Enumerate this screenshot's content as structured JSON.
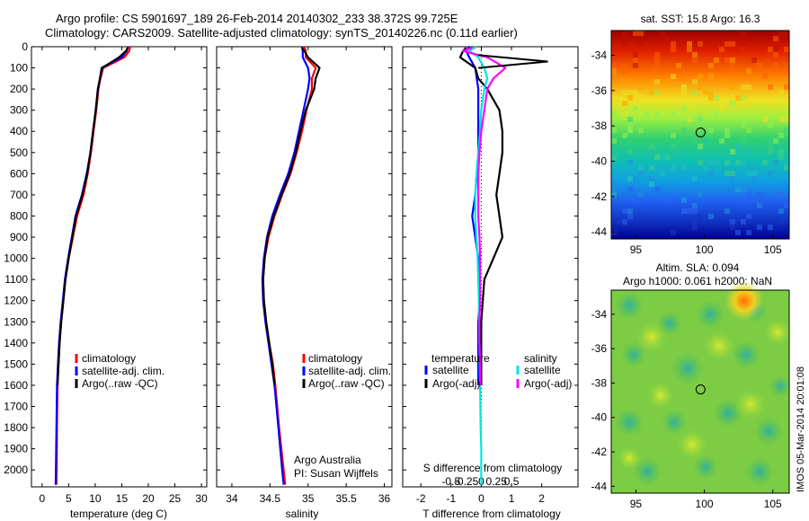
{
  "header": {
    "line1": "Argo profile: CS 5901697_189 26-Feb-2014 20140302_233 38.372S 99.725E",
    "line2": "Climatology: CARS2009. Satellite-adjusted climatology: synTS_20140226.nc (0.11d earlier)"
  },
  "colors": {
    "climatology": "#ff0000",
    "satellite": "#0000ff",
    "argo": "#000000",
    "satellite_salinity": "#00e5e5",
    "argo_adj_salinity": "#ff00ff"
  },
  "chart_data": [
    {
      "id": "temperature",
      "type": "line",
      "xlabel": "temperature (deg C)",
      "ylabel": "",
      "xlim": [
        -2,
        31
      ],
      "ylim": [
        2080,
        0
      ],
      "y_reversed": true,
      "xticks": [
        0,
        5,
        10,
        15,
        20,
        25,
        30
      ],
      "xtick_labels": [
        "0",
        "5",
        "10",
        "15",
        "20",
        "25",
        "30"
      ],
      "yticks": [
        0,
        100,
        200,
        300,
        400,
        500,
        600,
        700,
        800,
        900,
        1000,
        1100,
        1200,
        1300,
        1400,
        1500,
        1600,
        1700,
        1800,
        1900,
        2000
      ],
      "ytick_labels": [
        "0",
        "100",
        "200",
        "300",
        "400",
        "500",
        "600",
        "700",
        "800",
        "900",
        "1000",
        "1100",
        "1200",
        "1300",
        "1400",
        "1500",
        "1600",
        "1700",
        "1800",
        "1900",
        "2000"
      ],
      "legend": [
        "climatology",
        "satellite-adj. clim.",
        "Argo(..raw -QC)"
      ],
      "legend_position": "lower-right",
      "series": [
        {
          "name": "climatology",
          "color": "#ff0000",
          "x": [
            16.6,
            16.4,
            15.5,
            11.5,
            11.0,
            10.6,
            10.2,
            9.7,
            9.2,
            8.6,
            7.8,
            6.6,
            5.8,
            5.0,
            4.4,
            4.0,
            3.6,
            3.3,
            3.1,
            2.9,
            2.8,
            2.75,
            2.7
          ],
          "y": [
            0,
            20,
            50,
            100,
            150,
            200,
            300,
            400,
            500,
            600,
            700,
            800,
            900,
            1000,
            1100,
            1200,
            1300,
            1400,
            1500,
            1600,
            1800,
            2000,
            2070
          ]
        },
        {
          "name": "satellite-adj. clim.",
          "color": "#0000ff",
          "x": [
            16.2,
            15.9,
            15.0,
            11.2,
            10.9,
            10.5,
            10.1,
            9.6,
            9.1,
            8.4,
            7.5,
            6.3,
            5.6,
            4.9,
            4.3,
            3.9,
            3.5,
            3.2,
            3.0,
            2.8,
            2.7,
            2.6,
            2.55
          ],
          "y": [
            0,
            20,
            50,
            100,
            150,
            200,
            300,
            400,
            500,
            600,
            700,
            800,
            900,
            1000,
            1100,
            1200,
            1300,
            1400,
            1500,
            1600,
            1800,
            2000,
            2070
          ]
        },
        {
          "name": "Argo(..raw -QC)",
          "color": "#000000",
          "x": [
            16.1,
            15.8,
            14.5,
            11.3,
            10.9,
            10.5,
            10.1,
            9.6,
            9.1,
            8.5,
            7.6,
            6.4,
            5.7,
            5.0,
            4.4,
            4.0,
            3.6,
            3.3,
            3.1,
            2.9
          ],
          "y": [
            5,
            20,
            50,
            100,
            150,
            200,
            300,
            400,
            500,
            600,
            700,
            800,
            900,
            1000,
            1100,
            1200,
            1300,
            1400,
            1500,
            1600
          ]
        }
      ],
      "annotations": []
    },
    {
      "id": "salinity",
      "type": "line",
      "xlabel": "salinity",
      "ylabel": "",
      "xlim": [
        33.8,
        36.1
      ],
      "ylim": [
        2080,
        0
      ],
      "y_reversed": true,
      "xticks": [
        34,
        34.5,
        35,
        35.5,
        36
      ],
      "xtick_labels": [
        "34",
        "34.5",
        "35",
        "35.5",
        "36"
      ],
      "legend": [
        "climatology",
        "satellite-adj. clim.",
        "Argo(..raw -QC)"
      ],
      "legend_position": "lower-right",
      "series": [
        {
          "name": "climatology",
          "color": "#ff0000",
          "x": [
            34.95,
            34.97,
            34.97,
            35.1,
            35.05,
            35.05,
            34.98,
            34.92,
            34.85,
            34.77,
            34.66,
            34.56,
            34.48,
            34.43,
            34.41,
            34.42,
            34.45,
            34.49,
            34.54,
            34.57,
            34.62,
            34.68,
            34.7
          ],
          "y": [
            0,
            20,
            50,
            100,
            150,
            200,
            300,
            400,
            500,
            600,
            700,
            800,
            900,
            1000,
            1100,
            1200,
            1300,
            1400,
            1500,
            1600,
            1800,
            2000,
            2070
          ]
        },
        {
          "name": "satellite-adj. clim.",
          "color": "#0000ff",
          "x": [
            34.92,
            34.93,
            34.93,
            35.0,
            35.02,
            35.0,
            34.94,
            34.88,
            34.82,
            34.74,
            34.63,
            34.53,
            34.46,
            34.42,
            34.4,
            34.41,
            34.44,
            34.48,
            34.52,
            34.56,
            34.61,
            34.66,
            34.68
          ],
          "y": [
            0,
            20,
            50,
            100,
            150,
            200,
            300,
            400,
            500,
            600,
            700,
            800,
            900,
            1000,
            1100,
            1200,
            1300,
            1400,
            1500,
            1600,
            1800,
            2000,
            2070
          ]
        },
        {
          "name": "Argo(..raw -QC)",
          "color": "#000000",
          "x": [
            34.92,
            34.95,
            35.0,
            35.15,
            35.1,
            35.08,
            34.97,
            34.9,
            34.84,
            34.76,
            34.65,
            34.55,
            34.47,
            34.43,
            34.41,
            34.42,
            34.45,
            34.49,
            34.53,
            34.56
          ],
          "y": [
            5,
            20,
            50,
            100,
            150,
            200,
            300,
            400,
            500,
            600,
            700,
            800,
            900,
            1000,
            1100,
            1200,
            1300,
            1400,
            1500,
            1600
          ]
        }
      ],
      "annotations": [
        "Argo Australia",
        "PI: Susan Wijffels"
      ]
    },
    {
      "id": "differences",
      "type": "line",
      "xlabel": "T difference from climatology",
      "xlabel_top": "S difference from climatology",
      "xlim": [
        -2.6,
        3.2
      ],
      "ylim": [
        2080,
        0
      ],
      "y_reversed": true,
      "xticks": [
        -2,
        -1,
        0,
        1,
        2
      ],
      "xtick_labels": [
        "-2",
        "-1",
        "0",
        "1",
        "2"
      ],
      "s_xtick_labels": [
        "-0.5",
        "-0.25",
        "0",
        "0.25",
        "0.5"
      ],
      "legend_groups": {
        "temperature": [
          "satellite",
          "Argo(-adj)"
        ],
        "salinity": [
          "satellite",
          "Argo(-adj)"
        ]
      },
      "legend_position": "lower-center",
      "series": [
        {
          "name": "temperature satellite",
          "color": "#0000ff",
          "x": [
            -0.4,
            -0.5,
            -0.4,
            -0.2,
            -0.15,
            -0.1,
            -0.1,
            -0.1,
            -0.1,
            -0.15,
            -0.2,
            -0.3,
            -0.2,
            -0.1,
            -0.1,
            -0.05,
            -0.1,
            -0.1,
            -0.1,
            -0.1
          ],
          "y": [
            0,
            20,
            50,
            100,
            150,
            200,
            300,
            400,
            500,
            600,
            700,
            800,
            900,
            1000,
            1100,
            1200,
            1300,
            1400,
            1500,
            1600
          ]
        },
        {
          "name": "temperature Argo(-adj)",
          "color": "#000000",
          "x": [
            -0.5,
            -0.6,
            -0.7,
            -0.2,
            -0.1,
            0.2,
            0.6,
            0.7,
            0.7,
            0.6,
            0.5,
            0.6,
            0.7,
            0.4,
            0.1,
            0.05,
            0.0,
            0.0,
            0.0,
            0.0
          ],
          "y": [
            5,
            20,
            50,
            100,
            150,
            200,
            300,
            400,
            500,
            600,
            700,
            800,
            900,
            1000,
            1100,
            1200,
            1300,
            1400,
            1500,
            1600
          ]
        },
        {
          "name": "salinity satellite",
          "color": "#00e5e5",
          "x": [
            -0.08,
            -0.2,
            -0.05,
            0.05,
            0.1,
            0.05,
            0.0,
            -0.02,
            -0.05,
            -0.08,
            -0.1,
            -0.1,
            -0.08,
            -0.06,
            -0.05,
            -0.04,
            -0.03,
            -0.02,
            -0.01,
            0.0,
            0.0,
            0.0
          ],
          "y": [
            0,
            20,
            50,
            100,
            150,
            200,
            300,
            400,
            500,
            600,
            700,
            800,
            900,
            1000,
            1100,
            1200,
            1400,
            1600,
            1800,
            1900,
            2000,
            2070
          ]
        },
        {
          "name": "salinity Argo(-adj)",
          "color": "#ff00ff",
          "x": [
            -0.15,
            -0.3,
            0.1,
            0.4,
            0.2,
            0.1,
            0.05,
            0.0,
            -0.03,
            -0.05,
            -0.05,
            -0.05,
            -0.03,
            -0.02,
            -0.02,
            -0.02,
            -0.03,
            -0.03,
            -0.02,
            -0.02
          ],
          "y": [
            5,
            20,
            50,
            100,
            150,
            200,
            300,
            400,
            500,
            600,
            700,
            800,
            900,
            1000,
            1100,
            1200,
            1300,
            1400,
            1500,
            1600
          ]
        }
      ],
      "spike": {
        "color": "#000000",
        "x": [
          -0.1,
          2.2,
          -0.1
        ],
        "y": [
          40,
          70,
          100
        ]
      },
      "annotations": []
    },
    {
      "id": "sst_map",
      "type": "heatmap",
      "title": "sat. SST: 15.8 Argo: 16.3",
      "xlim": [
        93.2,
        106.2
      ],
      "ylim": [
        -44.4,
        -32.6
      ],
      "xticks": [
        95,
        100,
        105
      ],
      "xtick_labels": [
        "95",
        "100",
        "105"
      ],
      "yticks": [
        -34,
        -36,
        -38,
        -40,
        -42,
        -44
      ],
      "ytick_labels": [
        "-34",
        "-36",
        "-38",
        "-40",
        "-42",
        "-44"
      ],
      "colormap": "jet, warm north to cold south",
      "marker": {
        "lon": 99.725,
        "lat": -38.372
      }
    },
    {
      "id": "sla_map",
      "type": "heatmap",
      "title": "Altim. SLA: 0.094",
      "subtitle": "Argo h1000: 0.061 h2000: NaN",
      "xlim": [
        93.2,
        106.2
      ],
      "ylim": [
        -44.4,
        -32.6
      ],
      "xticks": [
        95,
        100,
        105
      ],
      "xtick_labels": [
        "95",
        "100",
        "105"
      ],
      "yticks": [
        -34,
        -36,
        -38,
        -40,
        -42,
        -44
      ],
      "ytick_labels": [
        "-34",
        "-36",
        "-38",
        "-40",
        "-42",
        "-44"
      ],
      "colormap": "jet, mostly green",
      "marker": {
        "lon": 99.725,
        "lat": -38.372
      }
    }
  ],
  "footer": {
    "imos_stamp": "IMOS 05-Mar-2014 20:01:08"
  }
}
